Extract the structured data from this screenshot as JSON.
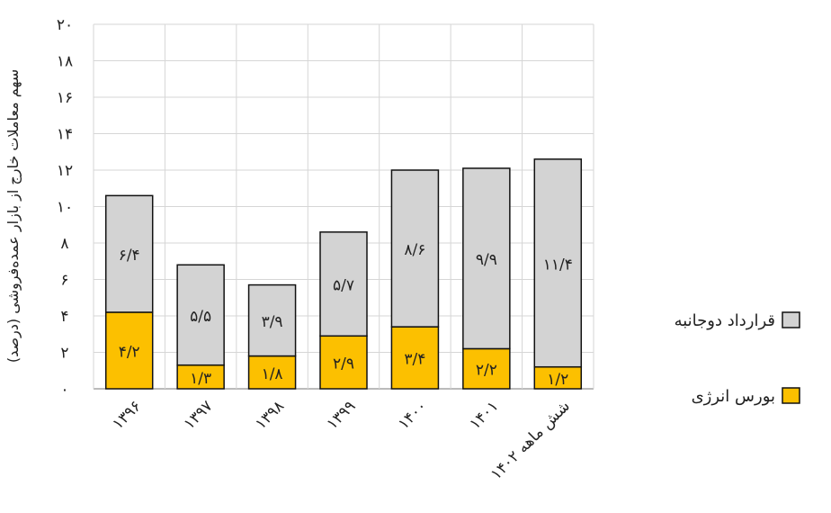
{
  "chart_data": {
    "type": "bar",
    "stacked": true,
    "categories": [
      "۱۳۹۶",
      "۱۳۹۷",
      "۱۳۹۸",
      "۱۳۹۹",
      "۱۴۰۰",
      "۱۴۰۱",
      "شش ماهه ۱۴۰۲"
    ],
    "series": [
      {
        "name": "بورس انرژی",
        "color": "#fcc000",
        "values": [
          4.2,
          1.3,
          1.8,
          2.9,
          3.4,
          2.2,
          1.2
        ],
        "labels": [
          "۴/۲",
          "۱/۳",
          "۱/۸",
          "۲/۹",
          "۳/۴",
          "۲/۲",
          "۱/۲"
        ]
      },
      {
        "name": "قرارداد دوجانبه",
        "color": "#d3d3d3",
        "values": [
          6.4,
          5.5,
          3.9,
          5.7,
          8.6,
          9.9,
          11.4
        ],
        "labels": [
          "۶/۴",
          "۵/۵",
          "۳/۹",
          "۵/۷",
          "۸/۶",
          "۹/۹",
          "۱۱/۴"
        ]
      }
    ],
    "yticks": [
      0,
      2,
      4,
      6,
      8,
      10,
      12,
      14,
      16,
      18,
      20
    ],
    "ytick_labels": [
      "۰",
      "۲",
      "۴",
      "۶",
      "۸",
      "۱۰",
      "۱۲",
      "۱۴",
      "۱۶",
      "۱۸",
      "۲۰"
    ],
    "ylim": [
      0,
      20
    ],
    "ylabel": "سهم معاملات خارج از بازار عمده‌فروشی (درصد)",
    "xlabel": "",
    "grid": true,
    "legend_position": "right"
  }
}
